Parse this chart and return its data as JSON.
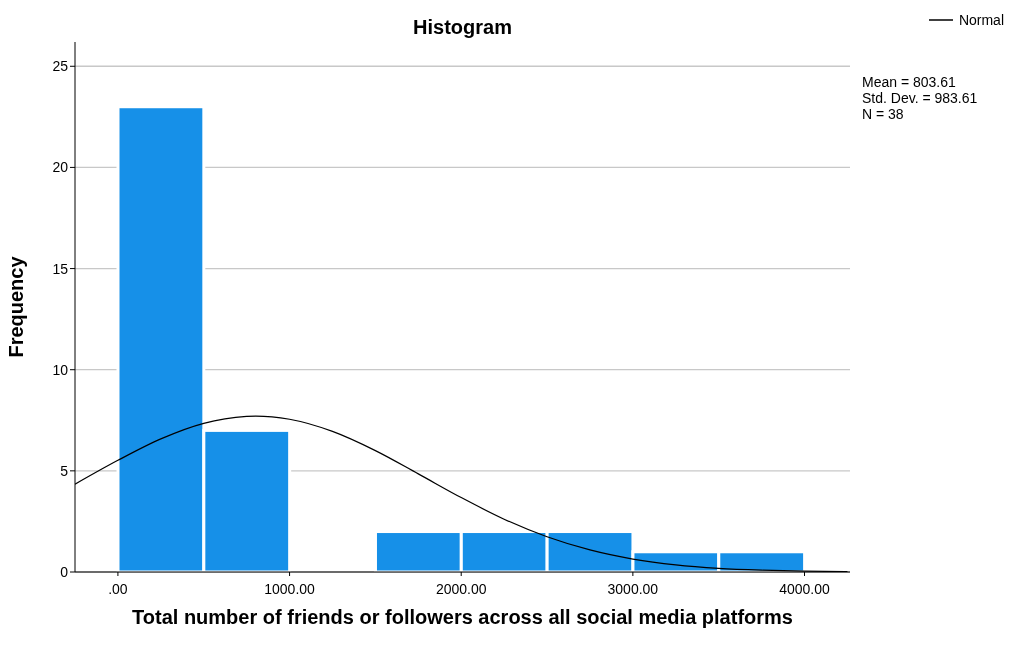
{
  "chart_data": {
    "type": "histogram",
    "title": "Histogram",
    "xlabel": "Total number of friends or followers across all social media platforms",
    "ylabel": "Frequency",
    "bins": [
      0,
      500,
      1000,
      1500,
      2000,
      2500,
      3000,
      3500,
      4000
    ],
    "values": [
      23,
      7,
      0,
      2,
      2,
      2,
      1,
      1
    ],
    "color": "#1690e8",
    "series": [
      {
        "type": "line",
        "name": "Normal",
        "color": "#000000",
        "x": [
          -250,
          0,
          250,
          500,
          750,
          803.61,
          1000,
          1250,
          1500,
          1750,
          2000,
          2250,
          2500,
          2750,
          3000,
          3250,
          3500,
          3750,
          4000,
          4250
        ],
        "values": [
          4.34,
          5.52,
          6.58,
          7.35,
          7.69,
          7.71,
          7.55,
          6.95,
          6.0,
          4.85,
          3.68,
          2.61,
          1.74,
          1.09,
          0.64,
          0.35,
          0.18,
          0.09,
          0.04,
          0.02
        ]
      }
    ],
    "xlim": [
      -250,
      4265
    ],
    "xticks": [
      {
        "value": 0,
        "label": ".00"
      },
      {
        "value": 1000,
        "label": "1000.00"
      },
      {
        "value": 2000,
        "label": "2000.00"
      },
      {
        "value": 3000,
        "label": "3000.00"
      },
      {
        "value": 4000,
        "label": "4000.00"
      }
    ],
    "ylim": [
      0,
      26.2
    ],
    "yticks": [
      0,
      5,
      10,
      15,
      20,
      25
    ],
    "grid": "y",
    "legend": "top right",
    "marker": "none",
    "line_style": "solid",
    "annotations": [
      "Mean = 803.61",
      "Std. Dev. = 983.61",
      "N = 38"
    ]
  }
}
